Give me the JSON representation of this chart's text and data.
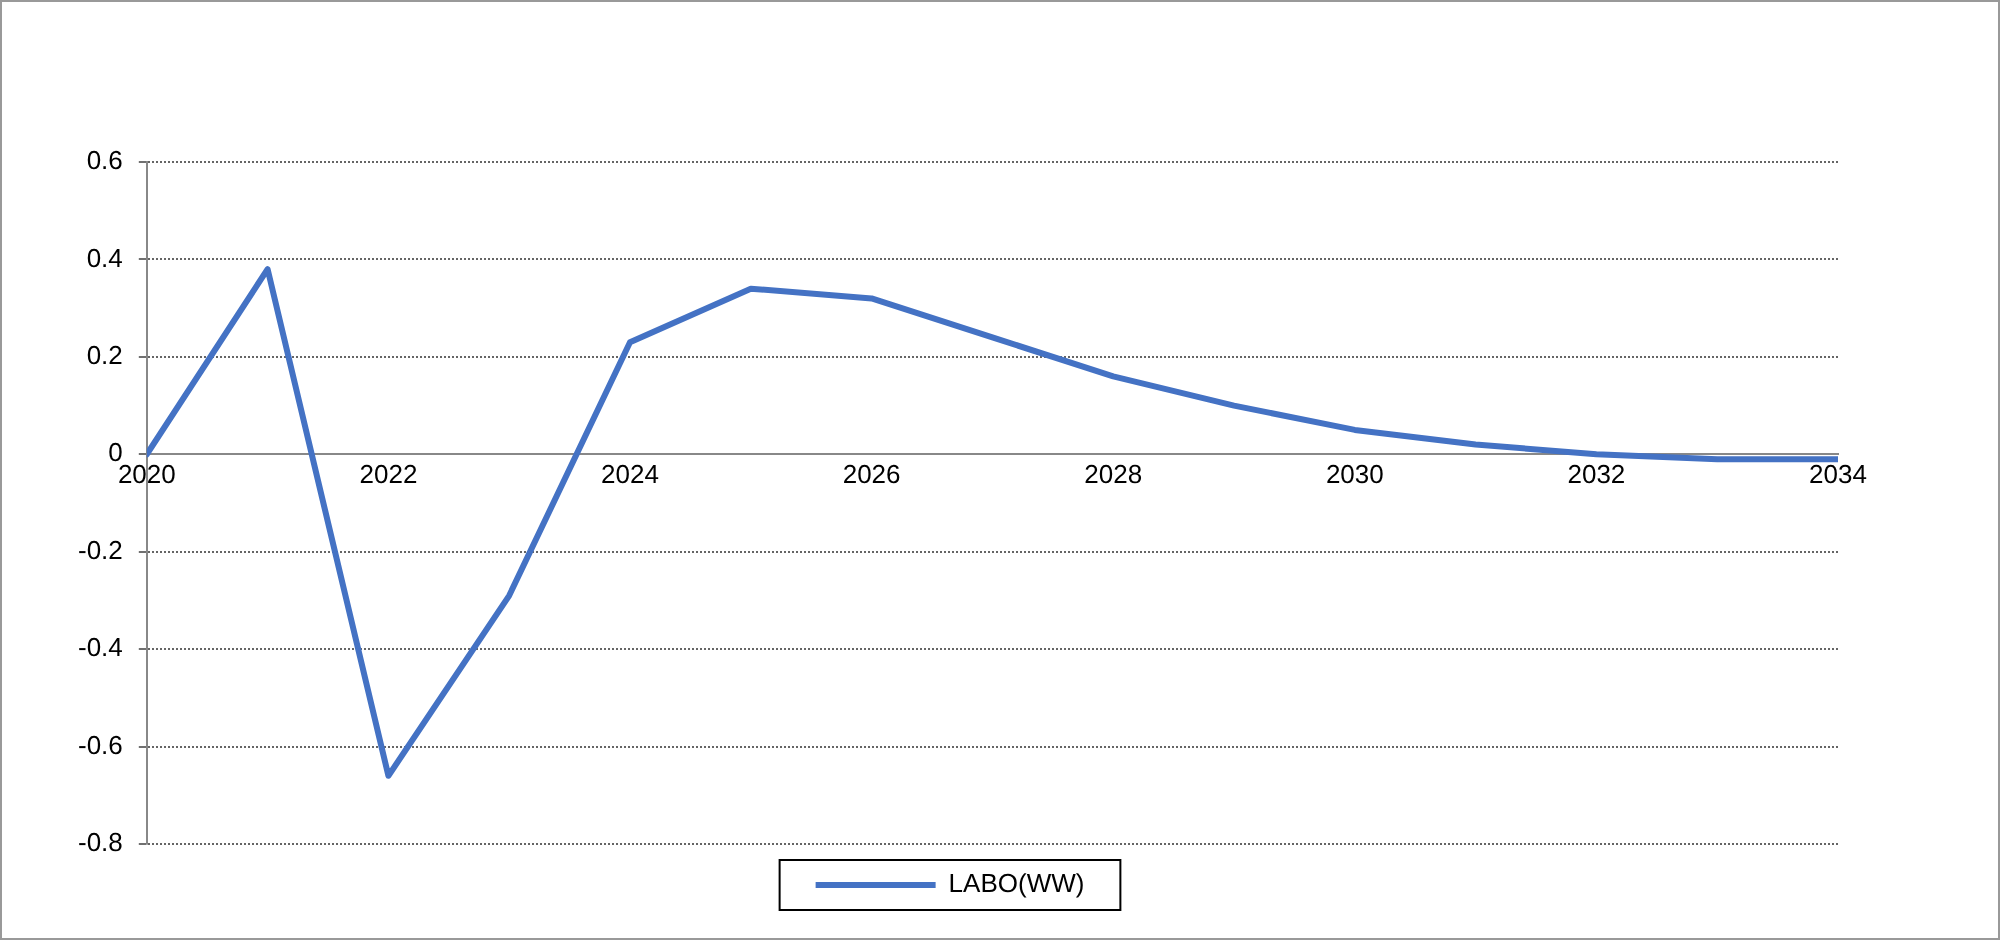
{
  "chart_data": {
    "type": "line",
    "x": [
      2020,
      2021,
      2022,
      2023,
      2024,
      2025,
      2026,
      2027,
      2028,
      2029,
      2030,
      2031,
      2032,
      2033,
      2034
    ],
    "series": [
      {
        "name": "LABO(WW)",
        "color": "#4472c4",
        "values": [
          0,
          0.38,
          -0.66,
          -0.29,
          0.23,
          0.34,
          0.32,
          0.24,
          0.16,
          0.1,
          0.05,
          0.02,
          0,
          -0.01,
          -0.01
        ]
      }
    ],
    "xlim": [
      2020,
      2034
    ],
    "xticks": [
      2020,
      2022,
      2024,
      2026,
      2028,
      2030,
      2032,
      2034
    ],
    "ylim": [
      -0.8,
      0.6
    ],
    "yticks": [
      -0.8,
      -0.6,
      -0.4,
      -0.2,
      0,
      0.2,
      0.4,
      0.6
    ],
    "grid": "y",
    "legend": "bottom",
    "marker": "none",
    "line_style": "solid"
  }
}
